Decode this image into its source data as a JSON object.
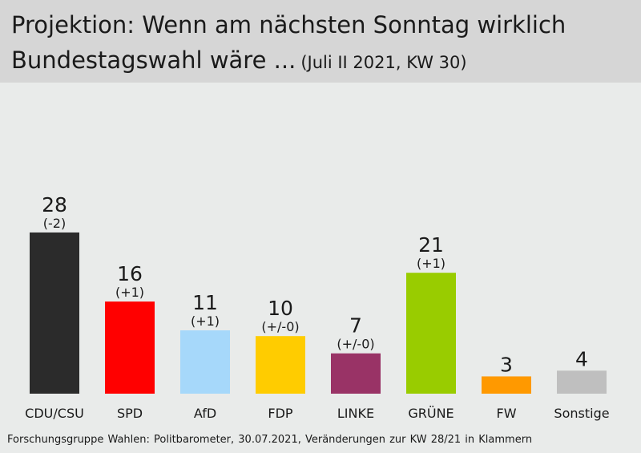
{
  "header": {
    "title_line1": "Projektion: Wenn am nächsten Sonntag wirklich",
    "title_line2": "Bundestagswahl wäre ...",
    "subtitle": "(Juli II 2021, KW 30)"
  },
  "footer": {
    "source": "Forschungsgruppe Wahlen: Politbarometer, 30.07.2021, Veränderungen zur KW 28/21 in Klammern"
  },
  "chart_data": {
    "type": "bar",
    "categories": [
      "CDU/CSU",
      "SPD",
      "AfD",
      "FDP",
      "LINKE",
      "GRÜNE",
      "FW",
      "Sonstige"
    ],
    "values": [
      28,
      16,
      11,
      10,
      7,
      21,
      3,
      4
    ],
    "changes": [
      "(-2)",
      "(+1)",
      "(+1)",
      "(+/-0)",
      "(+/-0)",
      "(+1)",
      "",
      ""
    ],
    "colors": [
      "#2b2b2b",
      "#ff0000",
      "#a6d8fa",
      "#ffcc00",
      "#993366",
      "#99cc00",
      "#ff9900",
      "#bfbfbf"
    ],
    "ylim": [
      0,
      28
    ],
    "grid": false,
    "legend": "none"
  }
}
